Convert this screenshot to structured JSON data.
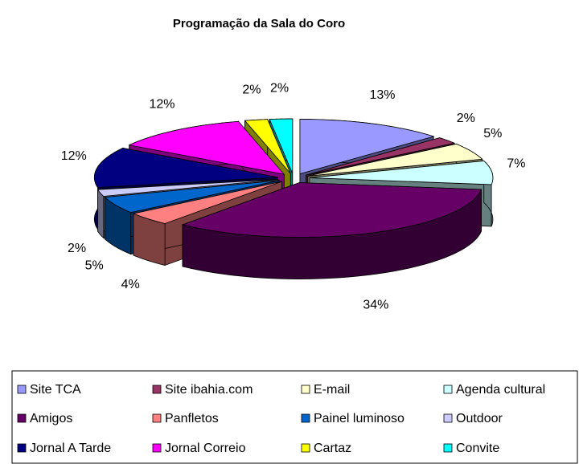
{
  "chart_data": {
    "type": "pie3d",
    "title": "Programação da Sala do Coro",
    "categories": [
      "Site TCA",
      "Site ibahia.com",
      "E-mail",
      "Agenda cultural",
      "Amigos",
      "Panfletos",
      "Painel luminoso",
      "Outdoor",
      "Jornal A Tarde",
      "Jornal Correio",
      "Cartaz",
      "Convite"
    ],
    "values": [
      13,
      2,
      5,
      7,
      34,
      4,
      5,
      2,
      12,
      12,
      2,
      2
    ],
    "value_labels": [
      "13%",
      "2%",
      "5%",
      "7%",
      "34%",
      "4%",
      "5%",
      "2%",
      "12%",
      "12%",
      "2%",
      "2%"
    ],
    "colors": [
      "#9999ff",
      "#993366",
      "#ffffcc",
      "#ccffff",
      "#660066",
      "#ff8080",
      "#0066cc",
      "#ccccff",
      "#000080",
      "#ff00ff",
      "#ffff00",
      "#00ffff"
    ],
    "legend": "bottom"
  }
}
